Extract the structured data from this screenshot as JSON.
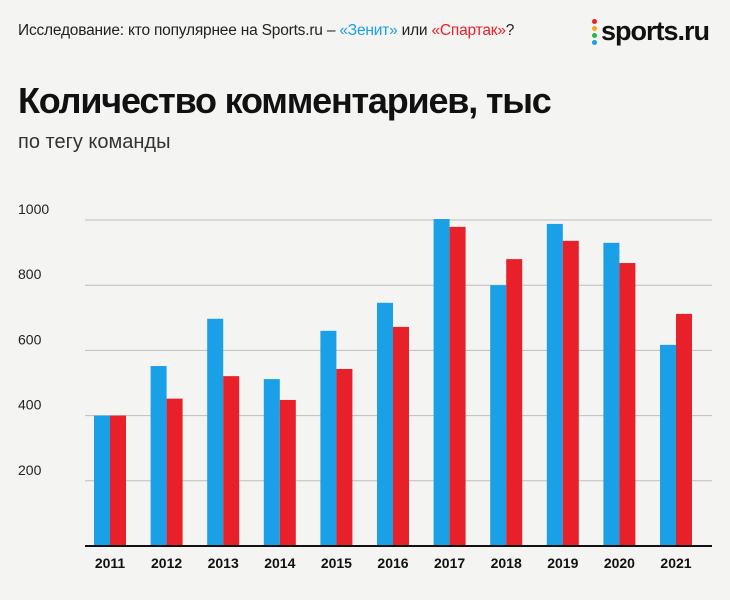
{
  "header": {
    "prefix": "Исследование: кто популярнее на Sports.ru – ",
    "zenit": "«Зенит»",
    "middle": " или ",
    "spartak": "«Спартак»",
    "suffix": "?"
  },
  "logo": {
    "text": "sports.ru",
    "dot_colors": [
      "#e8202a",
      "#f5a623",
      "#2ab34a",
      "#1aa0e6"
    ]
  },
  "colors": {
    "zenit": "#1aa0e6",
    "spartak": "#e8202a"
  },
  "chart_data": {
    "type": "bar",
    "title": "Количество комментариев, тыс",
    "subtitle": "по тегу команды",
    "xlabel": "",
    "ylabel": "",
    "categories": [
      "2011",
      "2012",
      "2013",
      "2014",
      "2015",
      "2016",
      "2017",
      "2018",
      "2019",
      "2020",
      "2021"
    ],
    "series": [
      {
        "color": "#1aa0e6",
        "values": [
          400,
          552,
          697,
          512,
          660,
          746,
          1003,
          800,
          988,
          930,
          617
        ]
      },
      {
        "color": "#e8202a",
        "values": [
          400,
          452,
          521,
          448,
          543,
          672,
          979,
          880,
          936,
          868,
          712
        ]
      }
    ],
    "yticks": [
      200,
      400,
      600,
      800,
      1000
    ],
    "ylim": [
      0,
      1000
    ],
    "grid": true,
    "legend": "none"
  }
}
